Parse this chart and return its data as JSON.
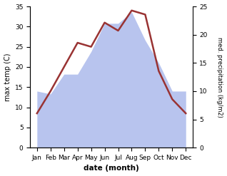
{
  "months": [
    1,
    2,
    3,
    4,
    5,
    6,
    7,
    8,
    9,
    10,
    11,
    12
  ],
  "month_labels": [
    "Jan",
    "Feb",
    "Mar",
    "Apr",
    "May",
    "Jun",
    "Jul",
    "Aug",
    "Sep",
    "Oct",
    "Nov",
    "Dec"
  ],
  "temp": [
    8.5,
    14.0,
    20.0,
    26.0,
    25.0,
    31.0,
    29.0,
    34.0,
    33.0,
    19.0,
    12.0,
    8.5
  ],
  "precip": [
    10.0,
    9.5,
    13.0,
    13.0,
    17.0,
    22.0,
    22.0,
    24.0,
    19.0,
    15.0,
    10.0,
    10.0
  ],
  "temp_color": "#993333",
  "precip_fill_color": "#b8c4ee",
  "temp_ylim": [
    0,
    35
  ],
  "precip_ylim": [
    0,
    25
  ],
  "temp_yticks": [
    0,
    5,
    10,
    15,
    20,
    25,
    30,
    35
  ],
  "precip_yticks": [
    0,
    5,
    10,
    15,
    20,
    25
  ],
  "xlabel": "date (month)",
  "ylabel_left": "max temp (C)",
  "ylabel_right": "med. precipitation (kg/m2)",
  "background_color": "#ffffff",
  "xlim": [
    0.5,
    12.5
  ]
}
